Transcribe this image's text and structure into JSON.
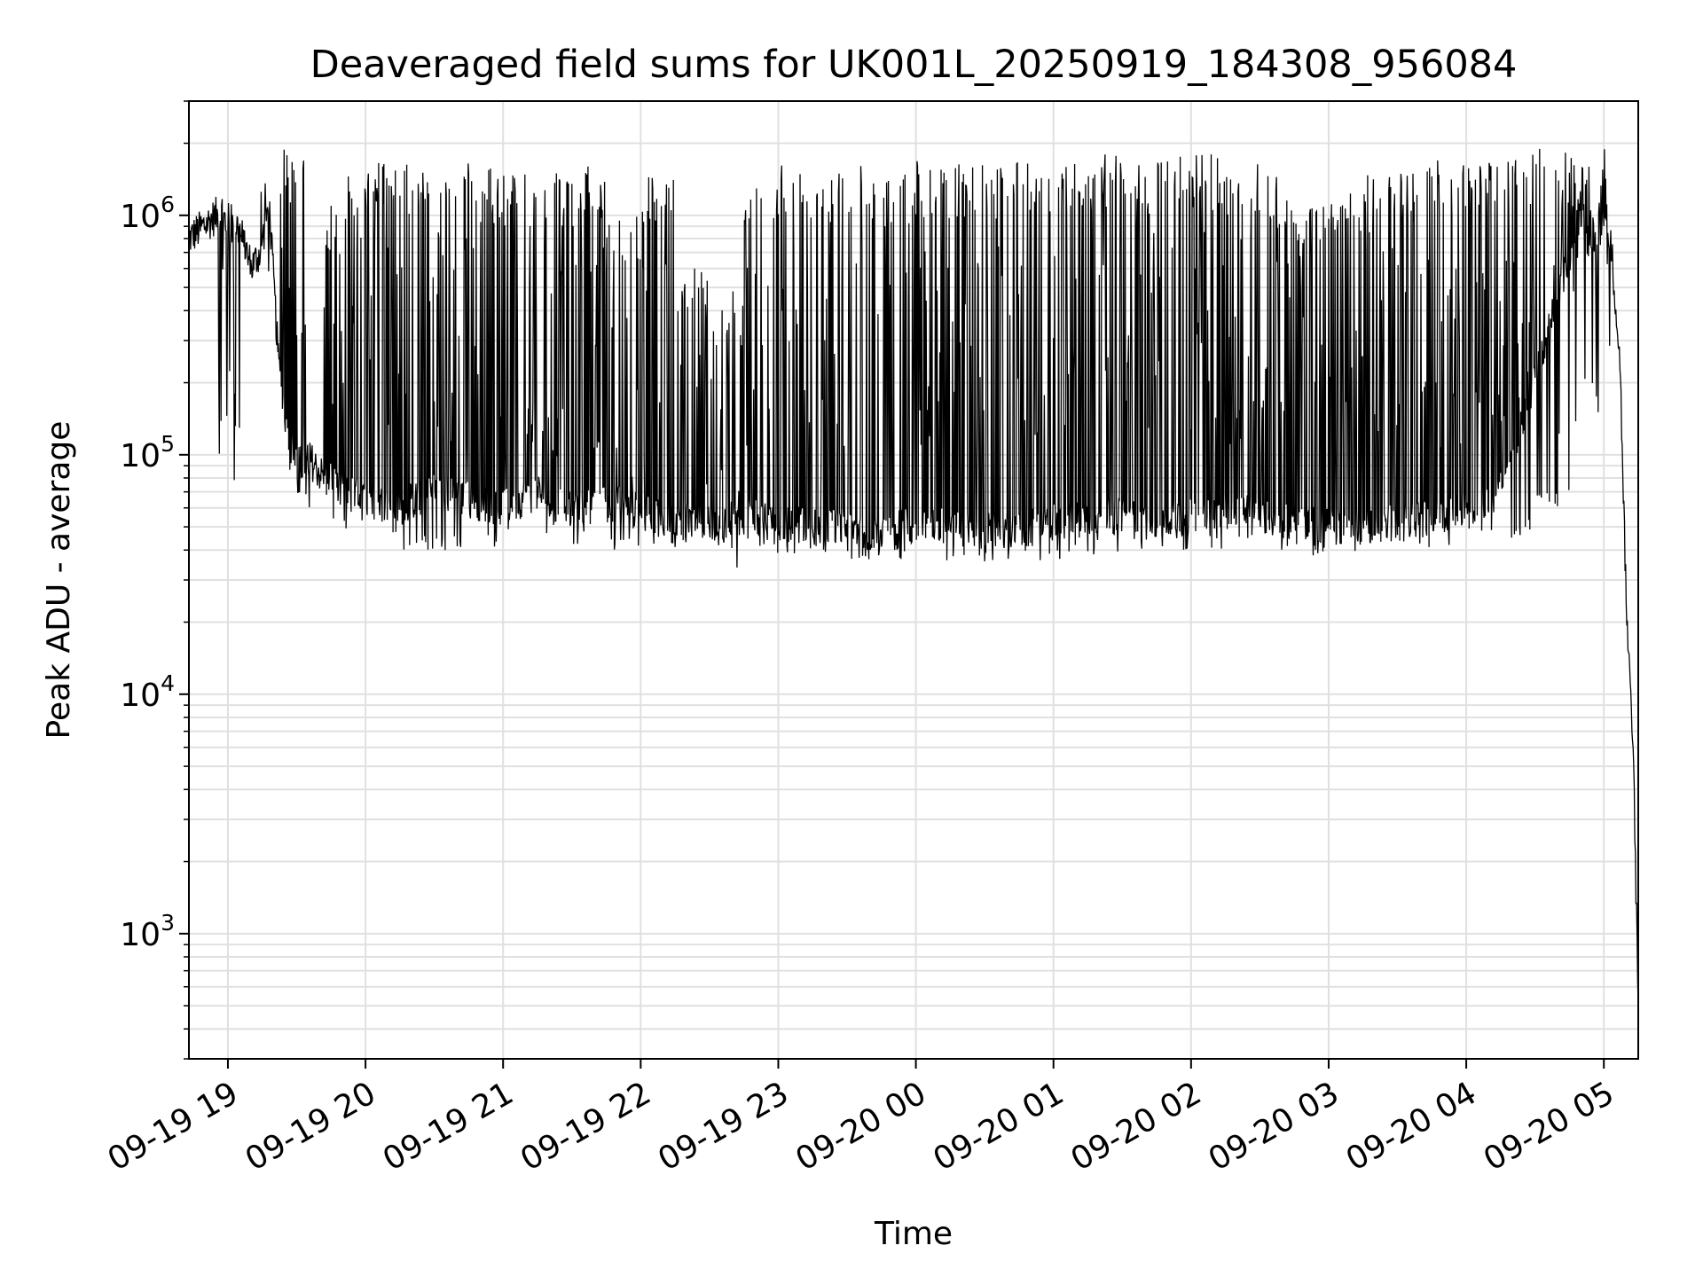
{
  "chart_data": {
    "type": "line",
    "title": "Deaveraged field sums for UK001L_20250919_184308_956084",
    "xlabel": "Time",
    "ylabel": "Peak ADU - average",
    "y_scale": "log",
    "ylim": [
      300,
      3000000
    ],
    "xlim": [
      "2025-09-19 18:43",
      "2025-09-20 05:15"
    ],
    "grid": true,
    "line_color": "#000000",
    "grid_color": "#e0e0e0",
    "x_ticks": [
      {
        "value": "2025-09-19 19:00",
        "label": "09-19 19"
      },
      {
        "value": "2025-09-19 20:00",
        "label": "09-19 20"
      },
      {
        "value": "2025-09-19 21:00",
        "label": "09-19 21"
      },
      {
        "value": "2025-09-19 22:00",
        "label": "09-19 22"
      },
      {
        "value": "2025-09-19 23:00",
        "label": "09-19 23"
      },
      {
        "value": "2025-09-20 00:00",
        "label": "09-20 00"
      },
      {
        "value": "2025-09-20 01:00",
        "label": "09-20 01"
      },
      {
        "value": "2025-09-20 02:00",
        "label": "09-20 02"
      },
      {
        "value": "2025-09-20 03:00",
        "label": "09-20 03"
      },
      {
        "value": "2025-09-20 04:00",
        "label": "09-20 04"
      },
      {
        "value": "2025-09-20 05:00",
        "label": "09-20 05"
      }
    ],
    "y_ticks": [
      {
        "value": 1000,
        "base": "10",
        "exp": "3"
      },
      {
        "value": 10000,
        "base": "10",
        "exp": "4"
      },
      {
        "value": 100000,
        "base": "10",
        "exp": "5"
      },
      {
        "value": 1000000,
        "base": "10",
        "exp": "6"
      }
    ],
    "series": [
      {
        "x": [
          "2025-09-19 18:43",
          "2025-09-19 18:55",
          "2025-09-19 19:05",
          "2025-09-19 19:10",
          "2025-09-19 19:14",
          "2025-09-19 19:18",
          "2025-09-19 19:22",
          "2025-09-19 19:26",
          "2025-09-19 19:30",
          "2025-09-19 19:36",
          "2025-09-19 19:42",
          "2025-09-19 19:50",
          "2025-09-19 20:00",
          "2025-09-19 20:15",
          "2025-09-19 20:30",
          "2025-09-19 20:45",
          "2025-09-19 21:00",
          "2025-09-19 21:15",
          "2025-09-19 21:30",
          "2025-09-19 21:45",
          "2025-09-19 22:00",
          "2025-09-19 22:15",
          "2025-09-19 22:30",
          "2025-09-19 22:45",
          "2025-09-19 23:00",
          "2025-09-19 23:15",
          "2025-09-19 23:30",
          "2025-09-19 23:45",
          "2025-09-20 00:00",
          "2025-09-20 00:15",
          "2025-09-20 00:30",
          "2025-09-20 00:45",
          "2025-09-20 01:00",
          "2025-09-20 01:15",
          "2025-09-20 01:30",
          "2025-09-20 01:45",
          "2025-09-20 02:00",
          "2025-09-20 02:15",
          "2025-09-20 02:30",
          "2025-09-20 02:45",
          "2025-09-20 03:00",
          "2025-09-20 03:15",
          "2025-09-20 03:30",
          "2025-09-20 03:45",
          "2025-09-20 04:00",
          "2025-09-20 04:15",
          "2025-09-20 04:30",
          "2025-09-20 04:45",
          "2025-09-20 05:00",
          "2025-09-20 05:03",
          "2025-09-20 05:07",
          "2025-09-20 05:10",
          "2025-09-20 05:13",
          "2025-09-20 05:15"
        ],
        "values": [
          800000,
          1000000,
          900000,
          600000,
          700000,
          1100000,
          250000,
          120000,
          90000,
          95000,
          80000,
          70000,
          65000,
          60000,
          70000,
          65000,
          60000,
          70000,
          60000,
          62000,
          58000,
          55000,
          52000,
          55000,
          52000,
          50000,
          50000,
          48000,
          52000,
          50000,
          48000,
          48000,
          52000,
          55000,
          55000,
          52000,
          55000,
          60000,
          55000,
          52000,
          50000,
          50000,
          52000,
          55000,
          60000,
          70000,
          200000,
          700000,
          900000,
          800000,
          250000,
          20000,
          5000,
          500
        ],
        "spike_high": [
          null,
          1200000,
          1100000,
          null,
          2000000,
          null,
          2000000,
          1900000,
          1700000,
          null,
          1200000,
          1700000,
          1700000,
          1700000,
          1700000,
          1600000,
          1600000,
          1500000,
          1600000,
          1000000,
          1500000,
          600000,
          500000,
          1600000,
          1700000,
          1600000,
          1700000,
          1500000,
          1700000,
          1700000,
          1700000,
          1700000,
          1800000,
          1800000,
          1800000,
          1900000,
          1800000,
          1700000,
          1500000,
          1200000,
          1500000,
          1500000,
          1600000,
          1700000,
          1700000,
          1900000,
          1900000,
          1800000,
          1900000,
          null,
          null,
          null,
          null,
          null
        ],
        "spike_low": [
          null,
          null,
          null,
          null,
          null,
          null,
          null,
          80000,
          60000,
          null,
          50000,
          45000,
          45000,
          40000,
          40000,
          40000,
          45000,
          45000,
          40000,
          40000,
          40000,
          40000,
          38000,
          38000,
          38000,
          36000,
          36000,
          35000,
          36000,
          36000,
          35000,
          35000,
          36000,
          38000,
          40000,
          40000,
          40000,
          42000,
          40000,
          38000,
          38000,
          40000,
          40000,
          40000,
          42000,
          45000,
          60000,
          null,
          null,
          null,
          null,
          null,
          null,
          null
        ]
      }
    ]
  }
}
